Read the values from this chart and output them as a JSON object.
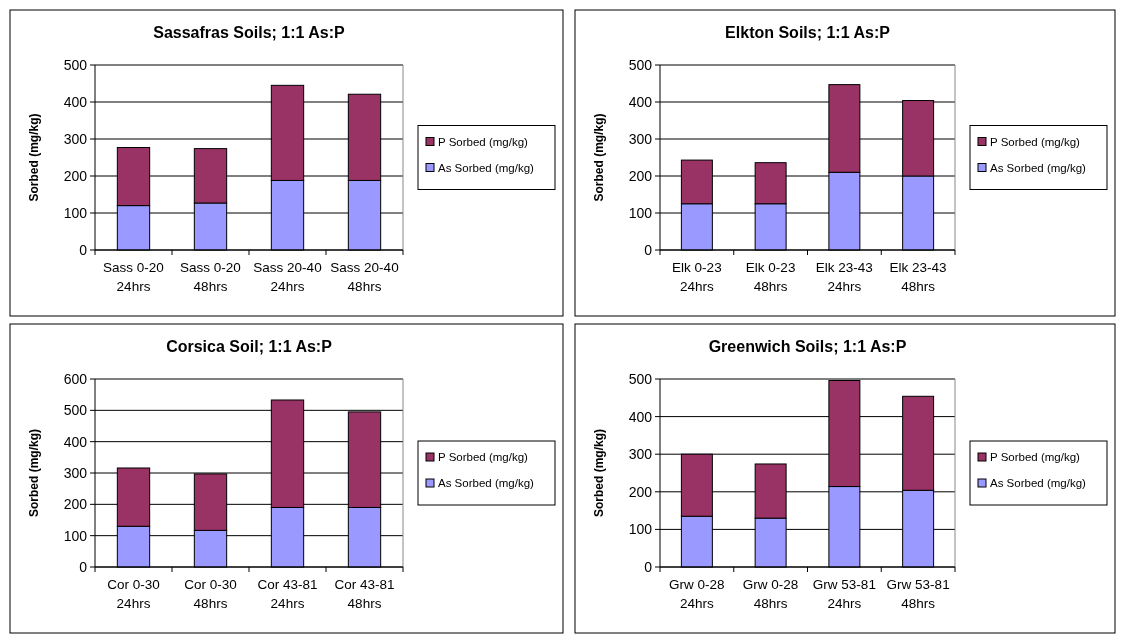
{
  "chart_data": [
    {
      "type": "bar",
      "title": "Sassafras Soils; 1:1 As:P",
      "ylabel": "Sorbed (mg/kg)",
      "categories": [
        "Sass 0-20 24hrs",
        "Sass 0-20 48hrs",
        "Sass 20-40 24hrs",
        "Sass 20-40 48hrs"
      ],
      "stacked": true,
      "ylim": [
        0,
        500
      ],
      "yticks": [
        0,
        100,
        200,
        300,
        400,
        500
      ],
      "grid": "y",
      "legend": "right",
      "series": [
        {
          "name": "As Sorbed (mg/kg)",
          "color": "#9999ff",
          "values": [
            120,
            127,
            188,
            188
          ]
        },
        {
          "name": "P Sorbed (mg/kg)",
          "color": "#993366",
          "values": [
            157,
            147,
            257,
            233
          ]
        }
      ]
    },
    {
      "type": "bar",
      "title": "Elkton Soils; 1:1 As:P",
      "ylabel": "Sorbed (mg/kg)",
      "categories": [
        "Elk 0-23 24hrs",
        "Elk 0-23 48hrs",
        "Elk 23-43 24hrs",
        "Elk 23-43 48hrs"
      ],
      "stacked": true,
      "ylim": [
        0,
        500
      ],
      "yticks": [
        0,
        100,
        200,
        300,
        400,
        500
      ],
      "grid": "y",
      "legend": "right",
      "series": [
        {
          "name": "As Sorbed (mg/kg)",
          "color": "#9999ff",
          "values": [
            125,
            125,
            210,
            200
          ]
        },
        {
          "name": "P Sorbed (mg/kg)",
          "color": "#993366",
          "values": [
            118,
            111,
            237,
            204
          ]
        }
      ]
    },
    {
      "type": "bar",
      "title": "Corsica Soil; 1:1 As:P",
      "ylabel": "Sorbed (mg/kg)",
      "categories": [
        "Cor 0-30 24hrs",
        "Cor 0-30 48hrs",
        "Cor 43-81 24hrs",
        "Cor 43-81 48hrs"
      ],
      "stacked": true,
      "ylim": [
        0,
        600
      ],
      "yticks": [
        0,
        100,
        200,
        300,
        400,
        500,
        600
      ],
      "grid": "y",
      "legend": "right",
      "series": [
        {
          "name": "As Sorbed (mg/kg)",
          "color": "#9999ff",
          "values": [
            130,
            117,
            190,
            190
          ]
        },
        {
          "name": "P Sorbed (mg/kg)",
          "color": "#993366",
          "values": [
            186,
            180,
            343,
            305
          ]
        }
      ]
    },
    {
      "type": "bar",
      "title": "Greenwich Soils; 1:1 As:P",
      "ylabel": "Sorbed (mg/kg)",
      "categories": [
        "Grw 0-28 24hrs",
        "Grw 0-28 48hrs",
        "Grw 53-81 24hrs",
        "Grw 53-81 48hrs"
      ],
      "stacked": true,
      "ylim": [
        0,
        500
      ],
      "yticks": [
        0,
        100,
        200,
        300,
        400,
        500
      ],
      "grid": "y",
      "legend": "right",
      "series": [
        {
          "name": "As Sorbed (mg/kg)",
          "color": "#9999ff",
          "values": [
            135,
            130,
            214,
            204
          ]
        },
        {
          "name": "P Sorbed (mg/kg)",
          "color": "#993366",
          "values": [
            165,
            144,
            282,
            250
          ]
        }
      ]
    }
  ]
}
